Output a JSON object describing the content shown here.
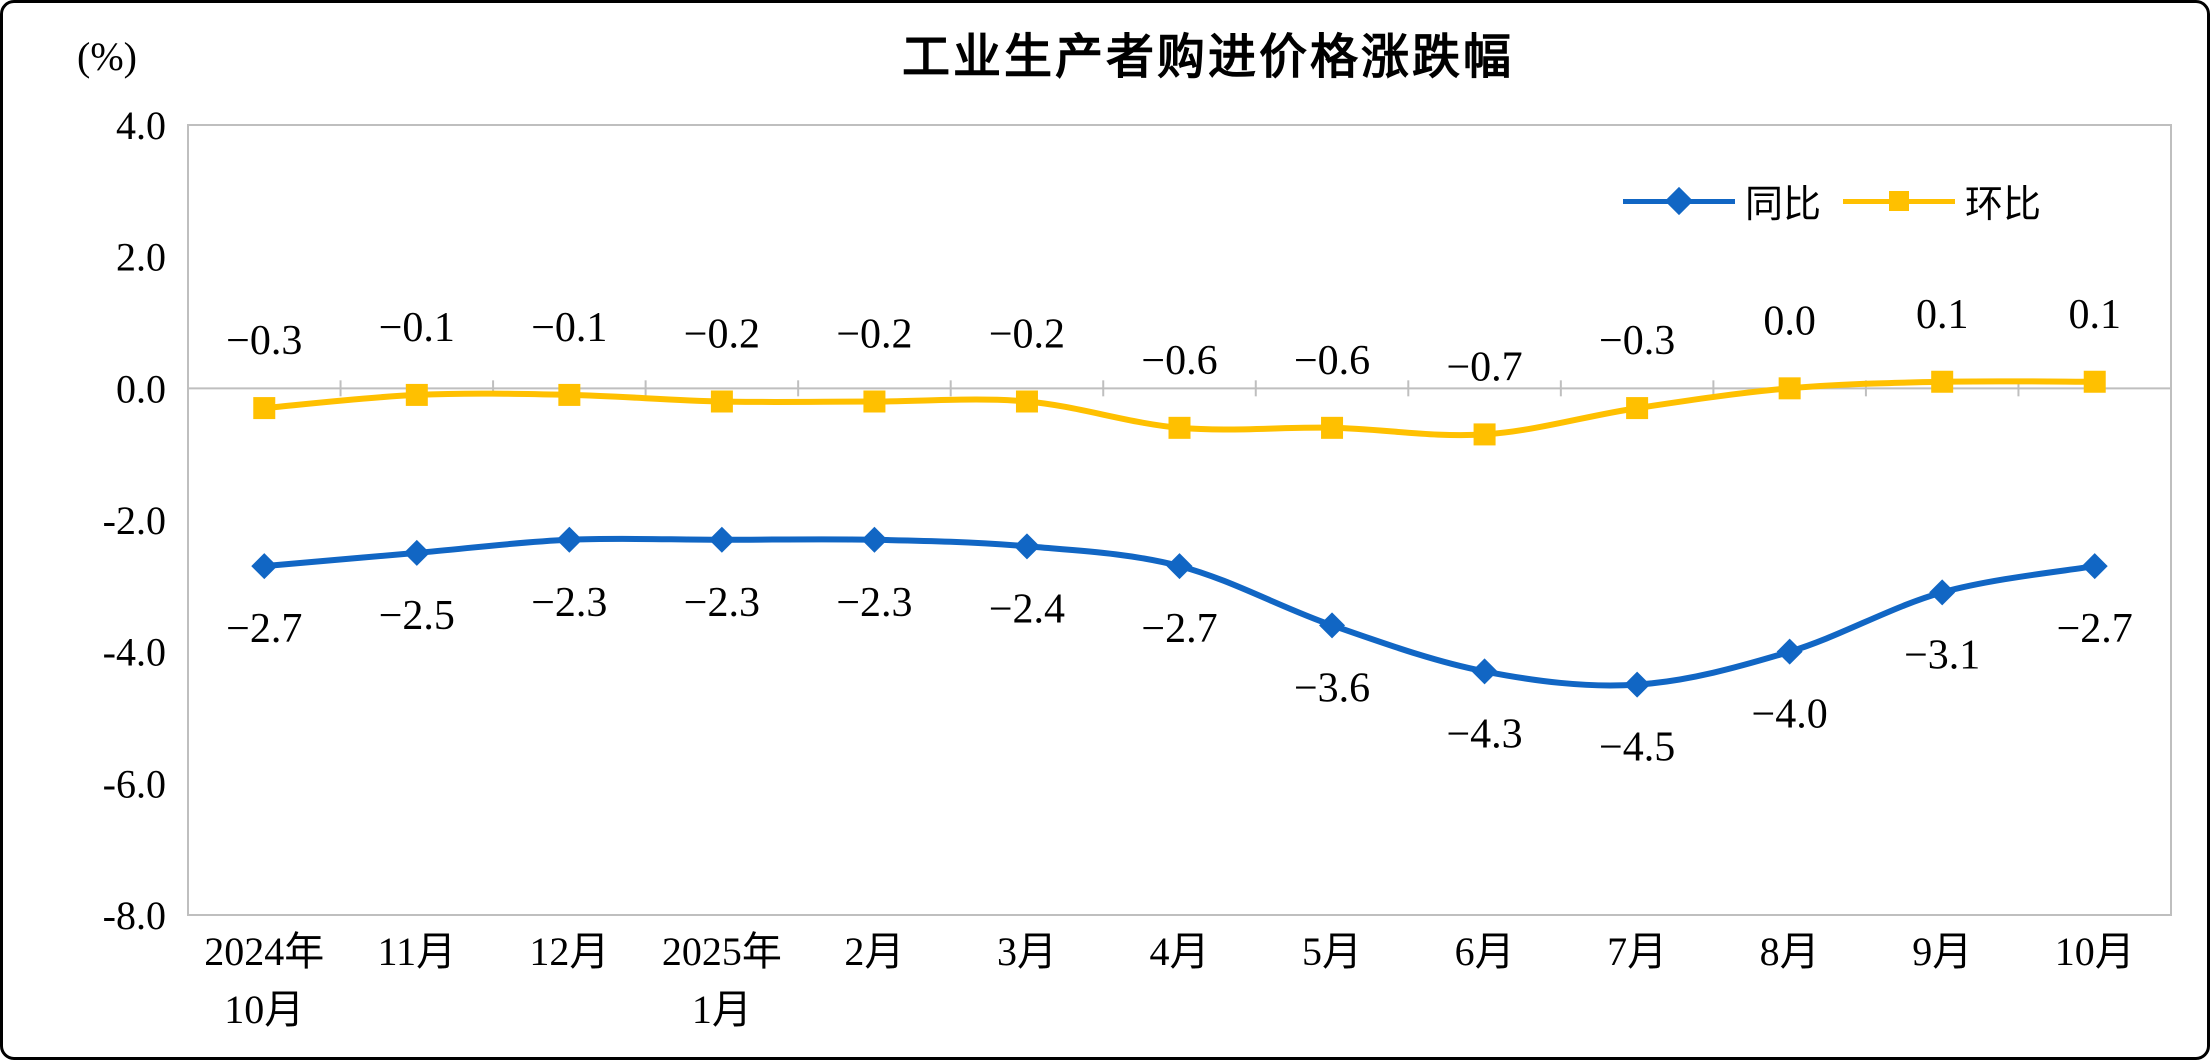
{
  "page": {
    "title": "工业生产者购进价格涨跌幅",
    "unit_label": "(%)"
  },
  "legend": {
    "items": [
      {
        "key": "yoy",
        "label": "同比",
        "color": "#1166C4",
        "marker": "diamond"
      },
      {
        "key": "mom",
        "label": "环比",
        "color": "#FFC000",
        "marker": "square"
      }
    ]
  },
  "chart_data": {
    "type": "line",
    "title": "工业生产者购进价格涨跌幅",
    "unit": "%",
    "categories": [
      [
        "2024年",
        "10月"
      ],
      [
        "11月"
      ],
      [
        "12月"
      ],
      [
        "2025年",
        "1月"
      ],
      [
        "2月"
      ],
      [
        "3月"
      ],
      [
        "4月"
      ],
      [
        "5月"
      ],
      [
        "6月"
      ],
      [
        "7月"
      ],
      [
        "8月"
      ],
      [
        "9月"
      ],
      [
        "10月"
      ]
    ],
    "series": [
      {
        "key": "yoy",
        "name": "同比",
        "color": "#1166C4",
        "marker": "diamond",
        "label_position": "below",
        "values": [
          -2.7,
          -2.5,
          -2.3,
          -2.3,
          -2.3,
          -2.4,
          -2.7,
          -3.6,
          -4.3,
          -4.5,
          -4.0,
          -3.1,
          -2.7
        ]
      },
      {
        "key": "mom",
        "name": "环比",
        "color": "#FFC000",
        "marker": "square",
        "label_position": "above",
        "values": [
          -0.3,
          -0.1,
          -0.1,
          -0.2,
          -0.2,
          -0.2,
          -0.6,
          -0.6,
          -0.7,
          -0.3,
          0.0,
          0.1,
          0.1
        ]
      }
    ],
    "y_axis": {
      "min": -8.0,
      "max": 4.0,
      "step": 2.0,
      "tick_labels": [
        "4.0",
        "2.0",
        "0.0",
        "-2.0",
        "-4.0",
        "-6.0",
        "-8.0"
      ]
    },
    "grid": false,
    "legend_position": "top-right"
  },
  "colors": {
    "axis": "#BFBFBF",
    "text": "#000000",
    "background": "#FFFFFF",
    "frame_border": "#000000"
  }
}
